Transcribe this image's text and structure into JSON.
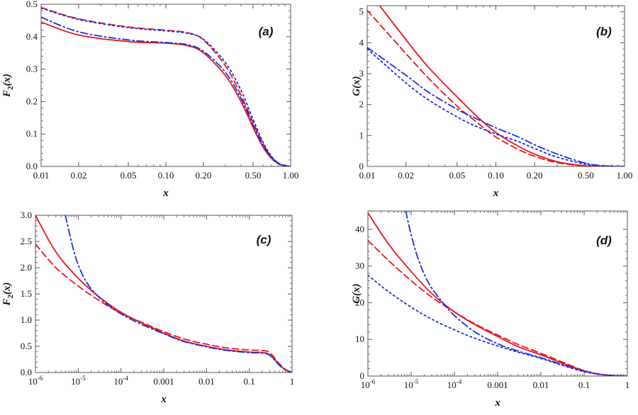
{
  "figure": {
    "colors": {
      "red": "#e8141c",
      "blue": "#1a2ee0",
      "axis": "#555555",
      "text": "#111111"
    }
  },
  "chart_data": [
    {
      "panel": "(a)",
      "type": "line",
      "x_scale": "log",
      "xlim": [
        0.01,
        1.0
      ],
      "ylim": [
        0,
        0.5
      ],
      "xlabel": "x",
      "ylabel_main": "F",
      "ylabel_sub": "2",
      "ylabel_tail": "(x)",
      "x_ticks": [
        {
          "v": 0.01,
          "label": "0.01"
        },
        {
          "v": 0.02,
          "label": "0.02"
        },
        {
          "v": 0.05,
          "label": "0.05"
        },
        {
          "v": 0.1,
          "label": "0.10"
        },
        {
          "v": 0.2,
          "label": "0.20"
        },
        {
          "v": 0.5,
          "label": "0.50"
        },
        {
          "v": 1.0,
          "label": "1.00"
        }
      ],
      "y_ticks": [
        {
          "v": 0,
          "label": "0.0"
        },
        {
          "v": 0.1,
          "label": "0.1"
        },
        {
          "v": 0.2,
          "label": "0.2"
        },
        {
          "v": 0.3,
          "label": "0.3"
        },
        {
          "v": 0.4,
          "label": "0.4"
        },
        {
          "v": 0.5,
          "label": "0.5"
        }
      ],
      "series": [
        {
          "name": "red solid",
          "color": "red",
          "dash": "solid",
          "x": [
            0.01,
            0.02,
            0.05,
            0.1,
            0.15,
            0.2,
            0.3,
            0.4,
            0.5,
            0.6,
            0.7,
            0.8,
            0.9,
            1.0
          ],
          "y": [
            0.445,
            0.405,
            0.385,
            0.38,
            0.372,
            0.35,
            0.28,
            0.2,
            0.12,
            0.06,
            0.025,
            0.008,
            0.002,
            0.0
          ]
        },
        {
          "name": "red dashed",
          "color": "red",
          "dash": "dashed",
          "x": [
            0.01,
            0.02,
            0.05,
            0.1,
            0.15,
            0.2,
            0.3,
            0.4,
            0.5,
            0.6,
            0.7,
            0.8,
            0.9,
            1.0
          ],
          "y": [
            0.49,
            0.455,
            0.43,
            0.42,
            0.412,
            0.39,
            0.31,
            0.22,
            0.135,
            0.07,
            0.03,
            0.01,
            0.003,
            0.0
          ]
        },
        {
          "name": "blue dash-dot",
          "color": "blue",
          "dash": "dashdot",
          "x": [
            0.01,
            0.02,
            0.05,
            0.1,
            0.15,
            0.2,
            0.3,
            0.4,
            0.5,
            0.6,
            0.7,
            0.8,
            0.9,
            1.0
          ],
          "y": [
            0.46,
            0.415,
            0.39,
            0.382,
            0.375,
            0.355,
            0.29,
            0.21,
            0.128,
            0.065,
            0.028,
            0.009,
            0.002,
            0.0
          ]
        },
        {
          "name": "blue dotted",
          "color": "blue",
          "dash": "dotted",
          "x": [
            0.01,
            0.02,
            0.05,
            0.1,
            0.15,
            0.2,
            0.3,
            0.4,
            0.5,
            0.6,
            0.7,
            0.8,
            0.9,
            1.0
          ],
          "y": [
            0.488,
            0.453,
            0.428,
            0.418,
            0.41,
            0.392,
            0.32,
            0.235,
            0.145,
            0.075,
            0.032,
            0.01,
            0.003,
            0.0
          ]
        }
      ]
    },
    {
      "panel": "(b)",
      "type": "line",
      "x_scale": "log",
      "xlim": [
        0.01,
        1.0
      ],
      "ylim": [
        0,
        5.2
      ],
      "xlabel": "x",
      "ylabel_main": "G",
      "ylabel_sub": "",
      "ylabel_tail": "(x)",
      "x_ticks": [
        {
          "v": 0.01,
          "label": "0.01"
        },
        {
          "v": 0.02,
          "label": "0.02"
        },
        {
          "v": 0.05,
          "label": "0.05"
        },
        {
          "v": 0.1,
          "label": "0.10"
        },
        {
          "v": 0.2,
          "label": "0.20"
        },
        {
          "v": 0.5,
          "label": "0.50"
        },
        {
          "v": 1.0,
          "label": "1.00"
        }
      ],
      "y_ticks": [
        {
          "v": 0,
          "label": "0"
        },
        {
          "v": 1,
          "label": "1"
        },
        {
          "v": 2,
          "label": "2"
        },
        {
          "v": 3,
          "label": "3"
        },
        {
          "v": 4,
          "label": "4"
        },
        {
          "v": 5,
          "label": "5"
        }
      ],
      "series": [
        {
          "name": "red solid",
          "color": "red",
          "dash": "solid",
          "x": [
            0.0125,
            0.02,
            0.03,
            0.05,
            0.07,
            0.1,
            0.15,
            0.2,
            0.3,
            0.5,
            0.7,
            1.0
          ],
          "y": [
            5.2,
            4.1,
            3.2,
            2.25,
            1.65,
            1.1,
            0.65,
            0.4,
            0.15,
            0.02,
            0.002,
            0.0
          ]
        },
        {
          "name": "red dashed",
          "color": "red",
          "dash": "dashed",
          "x": [
            0.01,
            0.02,
            0.03,
            0.05,
            0.07,
            0.1,
            0.15,
            0.2,
            0.3,
            0.5,
            0.7,
            1.0
          ],
          "y": [
            5.05,
            3.65,
            2.85,
            1.95,
            1.45,
            0.95,
            0.55,
            0.33,
            0.12,
            0.015,
            0.002,
            0.0
          ]
        },
        {
          "name": "blue dash-dot",
          "color": "blue",
          "dash": "dashdot",
          "x": [
            0.01,
            0.02,
            0.03,
            0.05,
            0.07,
            0.1,
            0.15,
            0.2,
            0.3,
            0.5,
            0.7,
            1.0
          ],
          "y": [
            3.85,
            2.95,
            2.4,
            1.85,
            1.55,
            1.25,
            0.95,
            0.7,
            0.4,
            0.1,
            0.02,
            0.0
          ]
        },
        {
          "name": "blue dotted",
          "color": "blue",
          "dash": "dotted",
          "x": [
            0.01,
            0.02,
            0.03,
            0.05,
            0.07,
            0.1,
            0.15,
            0.2,
            0.3,
            0.5,
            0.7,
            1.0
          ],
          "y": [
            3.8,
            2.7,
            2.15,
            1.6,
            1.3,
            1.05,
            0.8,
            0.58,
            0.3,
            0.07,
            0.015,
            0.0
          ]
        }
      ]
    },
    {
      "panel": "(c)",
      "type": "line",
      "x_scale": "log",
      "xlim": [
        1e-06,
        1.0
      ],
      "ylim": [
        0,
        3.0
      ],
      "xlabel": "x",
      "ylabel_main": "F",
      "ylabel_sub": "2",
      "ylabel_tail": "(x)",
      "x_ticks": [
        {
          "v": 1e-06,
          "label": "10",
          "exp": "-6"
        },
        {
          "v": 1e-05,
          "label": "10",
          "exp": "-5"
        },
        {
          "v": 0.0001,
          "label": "10",
          "exp": "-4"
        },
        {
          "v": 0.001,
          "label": "0.001"
        },
        {
          "v": 0.01,
          "label": "0.01"
        },
        {
          "v": 0.1,
          "label": "0.1"
        },
        {
          "v": 1.0,
          "label": "1"
        }
      ],
      "y_ticks": [
        {
          "v": 0,
          "label": "0.0"
        },
        {
          "v": 0.5,
          "label": "0.5"
        },
        {
          "v": 1.0,
          "label": "1.0"
        },
        {
          "v": 1.5,
          "label": "1.5"
        },
        {
          "v": 2.0,
          "label": "2.0"
        },
        {
          "v": 2.5,
          "label": "2.5"
        },
        {
          "v": 3.0,
          "label": "3.0"
        }
      ],
      "series": [
        {
          "name": "red solid",
          "color": "red",
          "dash": "solid",
          "x": [
            1e-06,
            3e-06,
            1e-05,
            3e-05,
            0.0001,
            0.0003,
            0.001,
            0.003,
            0.01,
            0.03,
            0.1,
            0.2,
            0.3,
            0.5,
            0.7,
            1.0
          ],
          "y": [
            3.0,
            2.3,
            1.8,
            1.45,
            1.15,
            0.95,
            0.75,
            0.6,
            0.5,
            0.43,
            0.39,
            0.38,
            0.34,
            0.15,
            0.05,
            0.0
          ]
        },
        {
          "name": "red dashed",
          "color": "red",
          "dash": "dashed",
          "x": [
            1e-06,
            3e-06,
            1e-05,
            3e-05,
            0.0001,
            0.0003,
            0.001,
            0.003,
            0.01,
            0.03,
            0.1,
            0.2,
            0.3,
            0.5,
            0.7,
            1.0
          ],
          "y": [
            2.45,
            2.0,
            1.65,
            1.38,
            1.13,
            0.96,
            0.78,
            0.64,
            0.54,
            0.47,
            0.43,
            0.42,
            0.38,
            0.17,
            0.06,
            0.0
          ]
        },
        {
          "name": "blue dash-dot",
          "color": "blue",
          "dash": "dashdot",
          "x": [
            5e-06,
            8e-06,
            1.2e-05,
            2e-05,
            4e-05,
            0.0001,
            0.0003,
            0.001,
            0.003,
            0.01,
            0.03,
            0.1,
            0.2,
            0.3,
            0.5,
            0.7,
            1.0
          ],
          "y": [
            3.0,
            2.3,
            1.9,
            1.6,
            1.35,
            1.12,
            0.92,
            0.74,
            0.59,
            0.49,
            0.42,
            0.38,
            0.37,
            0.33,
            0.14,
            0.05,
            0.0
          ]
        }
      ]
    },
    {
      "panel": "(d)",
      "type": "line",
      "x_scale": "log",
      "xlim": [
        1e-06,
        1.0
      ],
      "ylim": [
        0,
        45
      ],
      "xlabel": "x",
      "ylabel_main": "G",
      "ylabel_sub": "",
      "ylabel_tail": "(x)",
      "x_ticks": [
        {
          "v": 1e-06,
          "label": "10",
          "exp": "-6"
        },
        {
          "v": 1e-05,
          "label": "10",
          "exp": "-5"
        },
        {
          "v": 0.0001,
          "label": "10",
          "exp": "-4"
        },
        {
          "v": 0.001,
          "label": "0.001"
        },
        {
          "v": 0.01,
          "label": "0.01"
        },
        {
          "v": 0.1,
          "label": "0.1"
        },
        {
          "v": 1.0,
          "label": "1"
        }
      ],
      "y_ticks": [
        {
          "v": 0,
          "label": "0"
        },
        {
          "v": 10,
          "label": "10"
        },
        {
          "v": 20,
          "label": "20"
        },
        {
          "v": 30,
          "label": "30"
        },
        {
          "v": 40,
          "label": "40"
        }
      ],
      "series": [
        {
          "name": "red solid",
          "color": "red",
          "dash": "solid",
          "x": [
            1e-06,
            3e-06,
            1e-05,
            3e-05,
            0.0001,
            0.0003,
            0.001,
            0.003,
            0.01,
            0.03,
            0.1,
            0.3,
            1.0
          ],
          "y": [
            44.5,
            36.0,
            28.5,
            22.5,
            17.5,
            14.0,
            10.8,
            8.0,
            5.8,
            3.6,
            1.4,
            0.3,
            0.0
          ]
        },
        {
          "name": "red dashed",
          "color": "red",
          "dash": "dashed",
          "x": [
            1e-06,
            3e-06,
            1e-05,
            3e-05,
            0.0001,
            0.0003,
            0.001,
            0.003,
            0.01,
            0.03,
            0.1,
            0.3,
            1.0
          ],
          "y": [
            37.0,
            31.5,
            26.0,
            21.5,
            17.5,
            14.2,
            11.2,
            8.6,
            6.2,
            3.9,
            1.5,
            0.3,
            0.0
          ]
        },
        {
          "name": "blue dash-dot",
          "color": "blue",
          "dash": "dashdot",
          "x": [
            7.5e-06,
            1e-05,
            1.5e-05,
            2.5e-05,
            5e-05,
            0.0001,
            0.0003,
            0.001,
            0.003,
            0.01,
            0.03,
            0.1,
            0.3,
            1.0
          ],
          "y": [
            45.0,
            38.5,
            31.5,
            25.5,
            20.5,
            16.5,
            12.0,
            8.8,
            6.8,
            5.0,
            3.2,
            1.3,
            0.3,
            0.0
          ]
        },
        {
          "name": "blue dotted",
          "color": "blue",
          "dash": "dotted",
          "x": [
            1e-06,
            3e-06,
            1e-05,
            3e-05,
            0.0001,
            0.0003,
            0.001,
            0.003,
            0.01,
            0.03,
            0.1,
            0.3,
            1.0
          ],
          "y": [
            27.5,
            23.0,
            18.8,
            15.5,
            12.6,
            10.3,
            8.2,
            6.5,
            4.8,
            3.0,
            1.2,
            0.3,
            0.0
          ]
        }
      ]
    }
  ]
}
